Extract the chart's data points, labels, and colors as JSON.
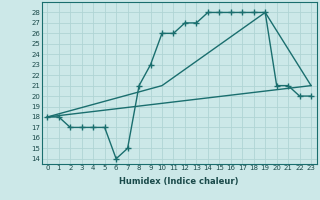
{
  "xlabel": "Humidex (Indice chaleur)",
  "bg_color": "#cce8e8",
  "grid_color": "#b0d4d4",
  "line_color": "#1a6e6e",
  "xlim": [
    -0.5,
    23.5
  ],
  "ylim": [
    13.5,
    29.0
  ],
  "yticks": [
    14,
    15,
    16,
    17,
    18,
    19,
    20,
    21,
    22,
    23,
    24,
    25,
    26,
    27,
    28
  ],
  "xticks": [
    0,
    1,
    2,
    3,
    4,
    5,
    6,
    7,
    8,
    9,
    10,
    11,
    12,
    13,
    14,
    15,
    16,
    17,
    18,
    19,
    20,
    21,
    22,
    23
  ],
  "series": [
    {
      "x": [
        0,
        1,
        2,
        3,
        4,
        5,
        6,
        7,
        8,
        9,
        10,
        11,
        12,
        13,
        14,
        15,
        16,
        17,
        18,
        19,
        20,
        21,
        22,
        23
      ],
      "y": [
        18,
        18,
        17,
        17,
        17,
        17,
        14,
        15,
        21,
        23,
        26,
        26,
        27,
        27,
        28,
        28,
        28,
        28,
        28,
        28,
        21,
        21,
        20,
        20
      ],
      "marker": "+",
      "ms": 4,
      "lw": 1.0
    },
    {
      "x": [
        0,
        10,
        19,
        23
      ],
      "y": [
        18,
        21,
        28,
        21
      ],
      "marker": null,
      "ms": 0,
      "lw": 1.0
    },
    {
      "x": [
        0,
        23
      ],
      "y": [
        18,
        21
      ],
      "marker": null,
      "ms": 0,
      "lw": 1.0
    }
  ]
}
